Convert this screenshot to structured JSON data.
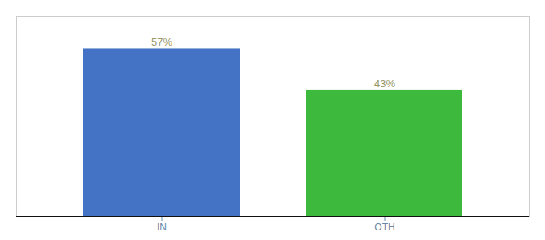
{
  "chart_data": {
    "type": "bar",
    "categories": [
      "IN",
      "OTH"
    ],
    "values": [
      57,
      43
    ],
    "value_labels": [
      "57%",
      "43%"
    ],
    "colors": [
      "#4472c4",
      "#3dba3d"
    ],
    "ylim": [
      0,
      68
    ],
    "data_labels": true,
    "tick_labels": "x"
  }
}
